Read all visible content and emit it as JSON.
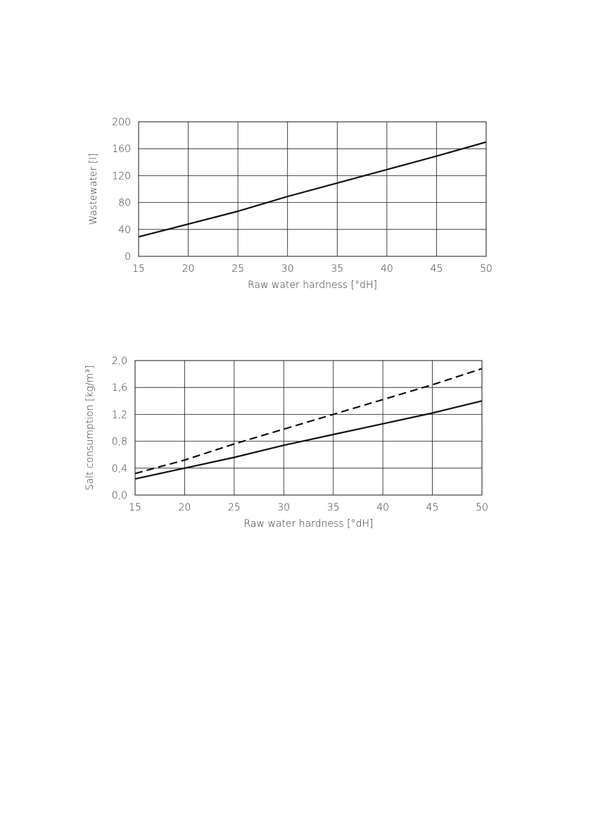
{
  "chart_data": [
    {
      "type": "line",
      "title": "",
      "xlabel": "Raw water hardness [°dH]",
      "ylabel": "Wastewater [l]",
      "xlim": [
        15,
        50
      ],
      "ylim": [
        0,
        200
      ],
      "xticks": [
        "15",
        "20",
        "25",
        "30",
        "35",
        "40",
        "45",
        "50"
      ],
      "yticks": [
        "0",
        "40",
        "80",
        "120",
        "160",
        "200"
      ],
      "xtick_values": [
        15,
        20,
        25,
        30,
        35,
        40,
        45,
        50
      ],
      "ytick_values": [
        0,
        40,
        80,
        120,
        160,
        200
      ],
      "grid": true,
      "series": [
        {
          "style": "solid",
          "color": "#111111",
          "x": [
            15,
            20,
            25,
            30,
            35,
            40,
            45,
            50
          ],
          "y": [
            29,
            48,
            67,
            89,
            109,
            129,
            149,
            170
          ]
        }
      ]
    },
    {
      "type": "line",
      "title": "",
      "xlabel": "Raw water hardness [°dH]",
      "ylabel": "Salt consumption [kg/m³]",
      "xlim": [
        15,
        50
      ],
      "ylim": [
        0,
        2.0
      ],
      "xticks": [
        "15",
        "20",
        "25",
        "30",
        "35",
        "40",
        "45",
        "50"
      ],
      "yticks": [
        "0,0",
        "0,4",
        "0,8",
        "1,2",
        "1,6",
        "2,0"
      ],
      "xtick_values": [
        15,
        20,
        25,
        30,
        35,
        40,
        45,
        50
      ],
      "ytick_values": [
        0,
        0.4,
        0.8,
        1.2,
        1.6,
        2.0
      ],
      "grid": true,
      "series": [
        {
          "style": "solid",
          "color": "#111111",
          "x": [
            15,
            20,
            25,
            30,
            35,
            40,
            45,
            50
          ],
          "y": [
            0.24,
            0.4,
            0.56,
            0.74,
            0.9,
            1.06,
            1.22,
            1.4
          ]
        },
        {
          "style": "dashed",
          "color": "#111111",
          "x": [
            15,
            20,
            25,
            30,
            35,
            40,
            45,
            50
          ],
          "y": [
            0.32,
            0.52,
            0.76,
            0.98,
            1.2,
            1.42,
            1.64,
            1.88
          ]
        }
      ]
    }
  ]
}
